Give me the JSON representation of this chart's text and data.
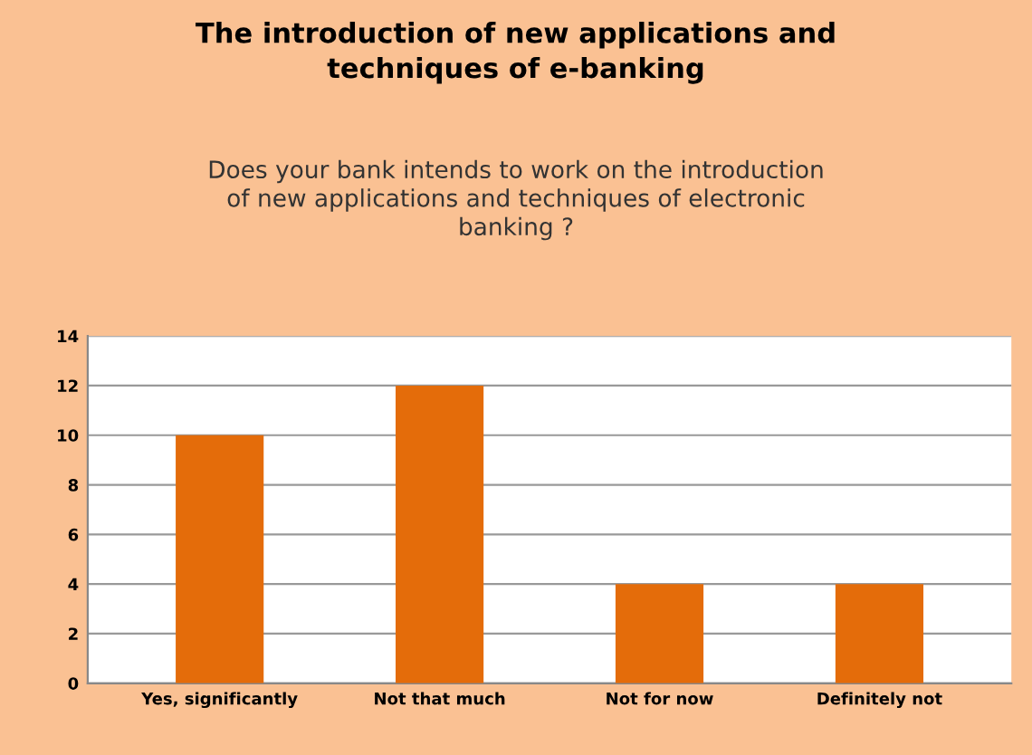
{
  "chart_data": {
    "type": "bar",
    "title": "The introduction of new applications and\ntechniques of e-banking",
    "subtitle": "Does your bank intends to work on the introduction\nof new applications and techniques of electronic\nbanking ?",
    "categories": [
      "Yes, significantly",
      "Not that much",
      "Not for now",
      "Definitely not"
    ],
    "values": [
      10,
      12,
      4,
      4
    ],
    "color": "#e46c0a",
    "ylim": [
      0,
      14
    ],
    "yticks": [
      0,
      2,
      4,
      6,
      8,
      10,
      12,
      14
    ],
    "grid": "y",
    "legend": false
  }
}
